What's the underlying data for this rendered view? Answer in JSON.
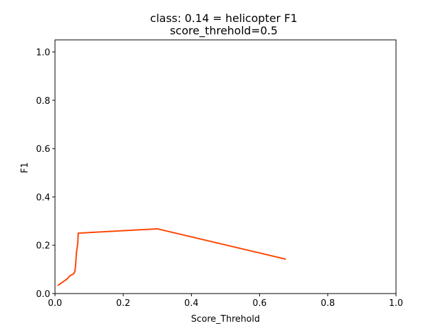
{
  "chart_data": {
    "type": "line",
    "title": "class: 0.14 = helicopter F1",
    "subtitle": "score_threhold=0.5",
    "xlabel": "Score_Threhold",
    "ylabel": "F1",
    "xlim": [
      0.0,
      1.0
    ],
    "ylim": [
      0.0,
      1.05
    ],
    "xticks": [
      0.0,
      0.2,
      0.4,
      0.6,
      0.8,
      1.0
    ],
    "yticks": [
      0.0,
      0.2,
      0.4,
      0.6,
      0.8,
      1.0
    ],
    "xtick_labels": [
      "0.0",
      "0.2",
      "0.4",
      "0.6",
      "0.8",
      "1.0"
    ],
    "ytick_labels": [
      "0.0",
      "0.2",
      "0.4",
      "0.6",
      "0.8",
      "1.0"
    ],
    "grid": false,
    "series": [
      {
        "color": "#ff4500",
        "x": [
          0.01,
          0.015,
          0.02,
          0.03,
          0.035,
          0.04,
          0.045,
          0.05,
          0.055,
          0.058,
          0.06,
          0.062,
          0.063,
          0.065,
          0.067,
          0.068,
          0.3,
          0.675
        ],
        "y": [
          0.035,
          0.04,
          0.045,
          0.055,
          0.06,
          0.068,
          0.075,
          0.078,
          0.082,
          0.09,
          0.11,
          0.15,
          0.17,
          0.19,
          0.21,
          0.25,
          0.268,
          0.143
        ]
      }
    ]
  }
}
